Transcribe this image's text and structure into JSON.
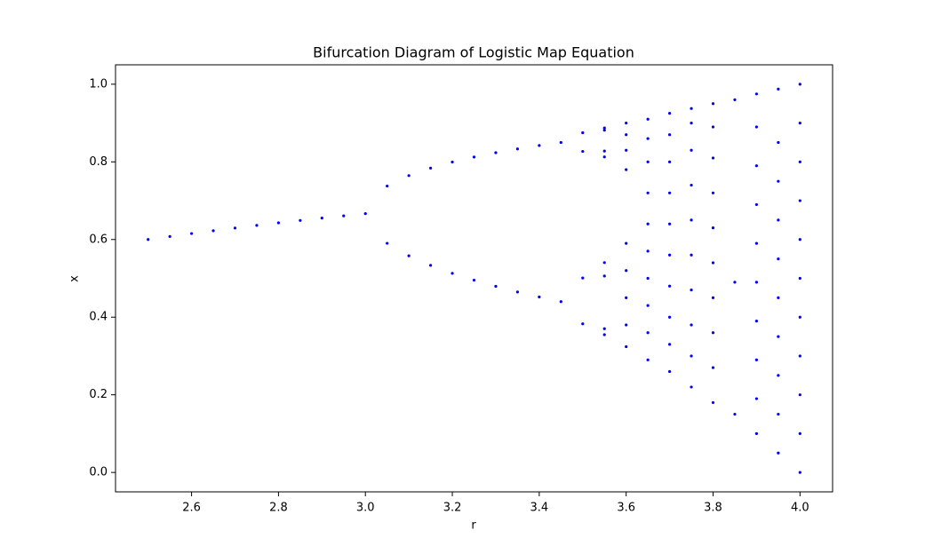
{
  "chart_data": {
    "type": "scatter",
    "title": "Bifurcation Diagram of Logistic Map Equation",
    "xlabel": "r",
    "ylabel": "x",
    "color": "#0000ff",
    "xlim": [
      2.425,
      4.075
    ],
    "ylim": [
      -0.05,
      1.05
    ],
    "xticks": [
      2.6,
      2.8,
      {
        "value": 3,
        "label": "3.0"
      },
      3.2,
      3.4,
      3.6,
      3.8,
      {
        "value": 4,
        "label": "4.0"
      }
    ],
    "yticks": [
      {
        "value": 0,
        "label": "0.0"
      },
      0.2,
      0.4,
      0.6,
      0.8,
      {
        "value": 1,
        "label": "1.0"
      }
    ],
    "x": [
      2.5,
      2.55,
      2.6,
      2.65,
      2.7,
      2.75,
      2.8,
      2.85,
      2.9,
      2.95,
      3.0,
      3.05,
      3.05,
      3.1,
      3.1,
      3.15,
      3.15,
      3.2,
      3.2,
      3.25,
      3.25,
      3.3,
      3.3,
      3.35,
      3.35,
      3.4,
      3.4,
      3.45,
      3.45,
      3.5,
      3.5,
      3.5,
      3.5,
      3.55,
      3.55,
      3.55,
      3.55,
      3.55,
      3.55,
      3.55,
      3.55,
      3.6,
      3.6,
      3.6,
      3.6,
      3.6,
      3.6,
      3.6,
      3.6,
      3.6,
      3.65,
      3.65,
      3.65,
      3.65,
      3.65,
      3.65,
      3.65,
      3.65,
      3.65,
      3.65,
      3.7,
      3.7,
      3.7,
      3.7,
      3.7,
      3.7,
      3.7,
      3.7,
      3.7,
      3.7,
      3.75,
      3.75,
      3.75,
      3.75,
      3.75,
      3.75,
      3.75,
      3.75,
      3.75,
      3.75,
      3.8,
      3.8,
      3.8,
      3.8,
      3.8,
      3.8,
      3.8,
      3.8,
      3.8,
      3.8,
      3.85,
      3.85,
      3.85,
      3.9,
      3.9,
      3.9,
      3.9,
      3.9,
      3.9,
      3.9,
      3.9,
      3.9,
      3.9,
      3.95,
      3.95,
      3.95,
      3.95,
      3.95,
      3.95,
      3.95,
      3.95,
      3.95,
      3.95,
      4.0,
      4.0,
      4.0,
      4.0,
      4.0,
      4.0,
      4.0,
      4.0,
      4.0,
      4.0,
      4.0
    ],
    "y": [
      0.6,
      0.6078,
      0.6154,
      0.6226,
      0.6296,
      0.6364,
      0.6429,
      0.6491,
      0.6552,
      0.661,
      0.6667,
      0.7377,
      0.5902,
      0.7646,
      0.558,
      0.784,
      0.5335,
      0.7995,
      0.513,
      0.8124,
      0.4953,
      0.8236,
      0.4794,
      0.8334,
      0.4649,
      0.8422,
      0.4519,
      0.85,
      0.4399,
      0.875,
      0.3828,
      0.8269,
      0.5009,
      0.8874,
      0.3548,
      0.8127,
      0.5405,
      0.8817,
      0.3703,
      0.8278,
      0.506,
      0.324,
      0.38,
      0.45,
      0.52,
      0.59,
      0.78,
      0.83,
      0.87,
      0.9,
      0.29,
      0.36,
      0.43,
      0.5,
      0.57,
      0.64,
      0.72,
      0.8,
      0.86,
      0.91,
      0.26,
      0.33,
      0.4,
      0.48,
      0.56,
      0.64,
      0.72,
      0.8,
      0.87,
      0.925,
      0.22,
      0.3,
      0.38,
      0.47,
      0.56,
      0.65,
      0.74,
      0.83,
      0.9,
      0.9375,
      0.18,
      0.27,
      0.36,
      0.45,
      0.54,
      0.63,
      0.72,
      0.81,
      0.89,
      0.95,
      0.15,
      0.49,
      0.96,
      0.1,
      0.19,
      0.29,
      0.39,
      0.49,
      0.59,
      0.69,
      0.79,
      0.89,
      0.975,
      0.05,
      0.15,
      0.25,
      0.35,
      0.45,
      0.55,
      0.65,
      0.75,
      0.85,
      0.9875,
      0.0,
      0.1,
      0.2,
      0.3,
      0.4,
      0.5,
      0.6,
      0.7,
      0.8,
      0.9,
      1.0
    ]
  }
}
